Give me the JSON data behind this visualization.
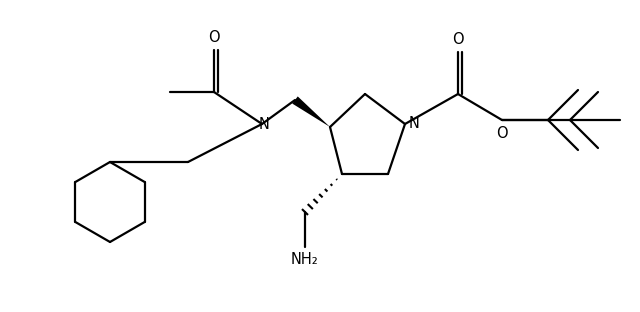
{
  "background_color": "#ffffff",
  "line_color": "#000000",
  "line_width": 1.6,
  "figsize": [
    6.4,
    3.12
  ],
  "dpi": 100,
  "xlim": [
    0,
    6.4
  ],
  "ylim": [
    0,
    3.12
  ]
}
